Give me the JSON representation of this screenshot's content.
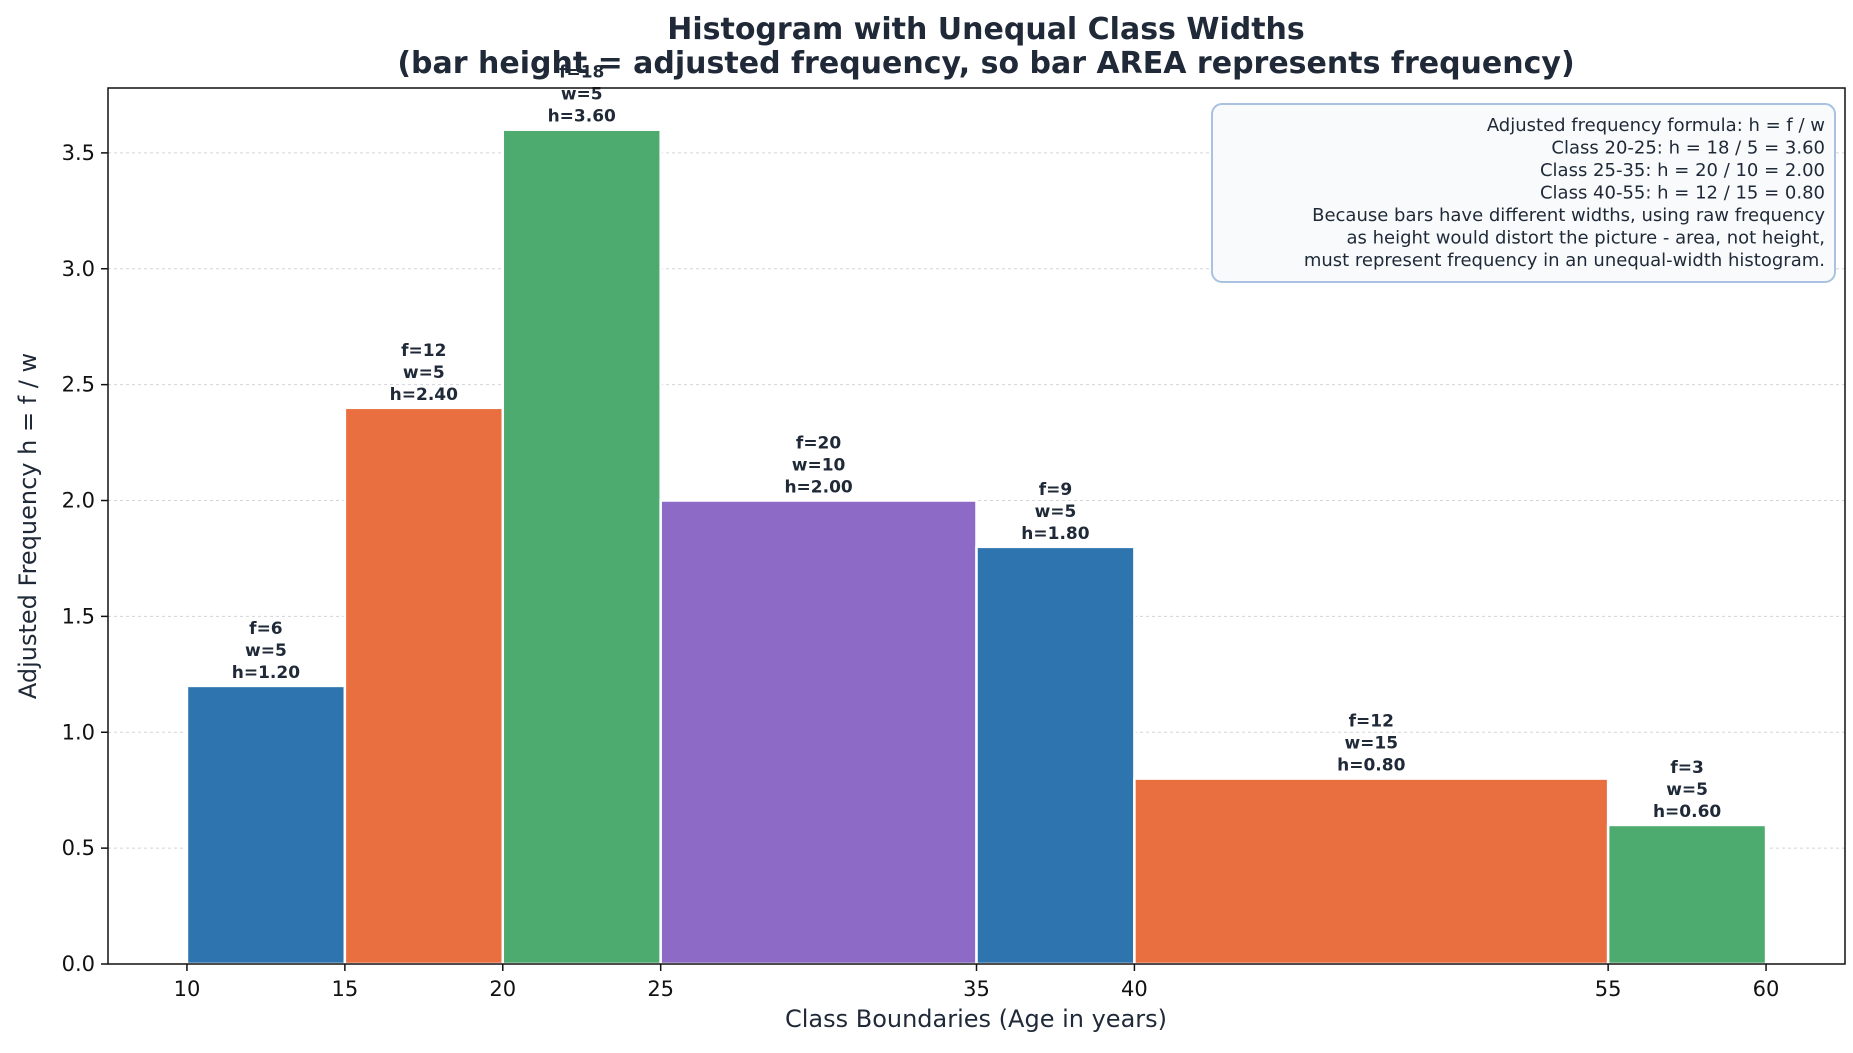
{
  "chart_data": {
    "type": "bar",
    "title": "Histogram with Unequal Class Widths",
    "subtitle": "(bar height = adjusted frequency, so bar AREA represents frequency)",
    "xlabel": "Class Boundaries (Age in years)",
    "ylabel": "Adjusted Frequency  h = f / w",
    "xlim": [
      7.5,
      62.5
    ],
    "ylim": [
      0,
      3.78
    ],
    "x_ticks": [
      10,
      15,
      20,
      25,
      35,
      40,
      55,
      60
    ],
    "y_ticks": [
      0.0,
      0.5,
      1.0,
      1.5,
      2.0,
      2.5,
      3.0,
      3.5
    ],
    "y_tick_labels": [
      "0.0",
      "0.5",
      "1.0",
      "1.5",
      "2.0",
      "2.5",
      "3.0",
      "3.5"
    ],
    "grid": "horizontal dotted",
    "colors": [
      "#2e75b0",
      "#e96f41",
      "#4dab6f",
      "#8c6ac5"
    ],
    "bins": [
      {
        "lower": 10,
        "upper": 15,
        "frequency": 6,
        "width": 5,
        "height": 1.2,
        "label_f": "f=6",
        "label_w": "w=5",
        "label_h": "h=1.20",
        "color": "#2e75b0"
      },
      {
        "lower": 15,
        "upper": 20,
        "frequency": 12,
        "width": 5,
        "height": 2.4,
        "label_f": "f=12",
        "label_w": "w=5",
        "label_h": "h=2.40",
        "color": "#e96f41"
      },
      {
        "lower": 20,
        "upper": 25,
        "frequency": 18,
        "width": 5,
        "height": 3.6,
        "label_f": "f=18",
        "label_w": "w=5",
        "label_h": "h=3.60",
        "color": "#4dab6f"
      },
      {
        "lower": 25,
        "upper": 35,
        "frequency": 20,
        "width": 10,
        "height": 2.0,
        "label_f": "f=20",
        "label_w": "w=10",
        "label_h": "h=2.00",
        "color": "#8c6ac5"
      },
      {
        "lower": 35,
        "upper": 40,
        "frequency": 9,
        "width": 5,
        "height": 1.8,
        "label_f": "f=9",
        "label_w": "w=5",
        "label_h": "h=1.80",
        "color": "#2e75b0"
      },
      {
        "lower": 40,
        "upper": 55,
        "frequency": 12,
        "width": 15,
        "height": 0.8,
        "label_f": "f=12",
        "label_w": "w=15",
        "label_h": "h=0.80",
        "color": "#e96f41"
      },
      {
        "lower": 55,
        "upper": 60,
        "frequency": 3,
        "width": 5,
        "height": 0.6,
        "label_f": "f=3",
        "label_w": "w=5",
        "label_h": "h=0.60",
        "color": "#4dab6f"
      }
    ],
    "annotation": {
      "position": "top-right",
      "lines": [
        "Adjusted frequency formula:  h = f / w",
        "Class 20-25:  h = 18 / 5 = 3.60",
        "Class 25-35:  h = 20 / 10 = 2.00",
        "Class 40-55:  h = 12 / 15 = 0.80",
        "Because bars have different widths, using raw frequency",
        "as height would distort the picture - area, not height,",
        "must represent frequency in an unequal-width histogram."
      ]
    }
  }
}
